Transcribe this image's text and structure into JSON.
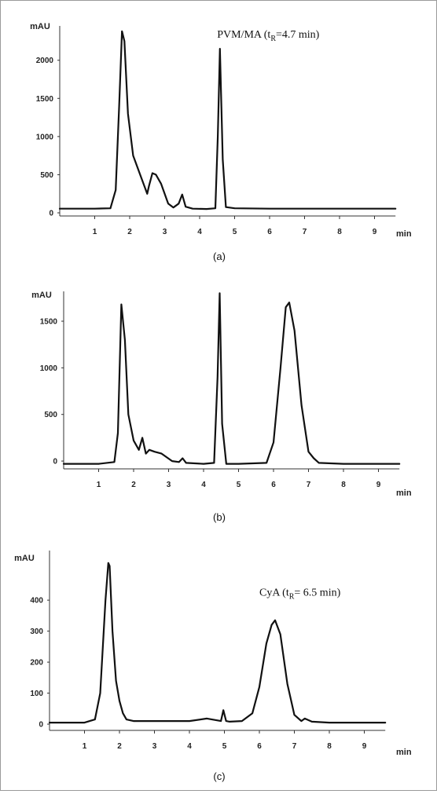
{
  "chart_data": [
    {
      "type": "line",
      "panel_label": "(a)",
      "ylabel": "mAU",
      "xlabel": "min",
      "xlim": [
        0,
        9.6
      ],
      "ylim": [
        0,
        2450
      ],
      "xticks": [
        1,
        2,
        3,
        4,
        5,
        6,
        7,
        8,
        9
      ],
      "yticks": [
        0,
        500,
        1000,
        1500,
        2000
      ],
      "annotations": [
        {
          "parts": [
            {
              "t": "PVM/MA (t"
            },
            {
              "t": "R",
              "sub": true
            },
            {
              "t": "=4.7 min)"
            }
          ],
          "x": 4.5,
          "y": 2400
        }
      ],
      "series": [
        {
          "x": [
            0.0,
            1.0,
            1.45,
            1.6,
            1.7,
            1.78,
            1.85,
            1.95,
            2.1,
            2.3,
            2.5,
            2.55,
            2.65,
            2.75,
            2.9,
            3.1,
            3.25,
            3.4,
            3.5,
            3.6,
            3.8,
            4.2,
            4.45,
            4.52,
            4.58,
            4.66,
            4.75,
            5.0,
            6.0,
            8.0,
            9.6
          ],
          "y": [
            55,
            55,
            60,
            300,
            1400,
            2380,
            2250,
            1300,
            750,
            500,
            250,
            350,
            520,
            500,
            380,
            120,
            70,
            120,
            240,
            80,
            55,
            50,
            60,
            1000,
            2150,
            700,
            75,
            60,
            55,
            55,
            55
          ]
        }
      ]
    },
    {
      "type": "line",
      "panel_label": "(b)",
      "ylabel": "mAU",
      "xlabel": "min",
      "xlim": [
        0,
        9.6
      ],
      "ylim": [
        -50,
        1820
      ],
      "xticks": [
        1,
        2,
        3,
        4,
        5,
        6,
        7,
        8,
        9
      ],
      "yticks": [
        0,
        500,
        1000,
        1500
      ],
      "annotations": [],
      "series": [
        {
          "x": [
            0.0,
            1.0,
            1.45,
            1.55,
            1.65,
            1.75,
            1.85,
            2.0,
            2.15,
            2.25,
            2.35,
            2.45,
            2.6,
            2.8,
            3.1,
            3.3,
            3.4,
            3.5,
            4.0,
            4.3,
            4.4,
            4.46,
            4.53,
            4.65,
            5.0,
            5.8,
            6.0,
            6.2,
            6.35,
            6.45,
            6.6,
            6.8,
            7.0,
            7.15,
            7.3,
            8.0,
            9.6
          ],
          "y": [
            -30,
            -30,
            -10,
            300,
            1680,
            1300,
            500,
            220,
            120,
            250,
            80,
            120,
            100,
            80,
            0,
            -10,
            30,
            -20,
            -30,
            -20,
            900,
            1800,
            400,
            -30,
            -30,
            -20,
            200,
            1000,
            1650,
            1700,
            1400,
            600,
            100,
            30,
            -20,
            -30,
            -30
          ]
        }
      ]
    },
    {
      "type": "line",
      "panel_label": "(c)",
      "ylabel": "mAU",
      "xlabel": "min",
      "xlim": [
        0,
        9.6
      ],
      "ylim": [
        -10,
        560
      ],
      "xticks": [
        1,
        2,
        3,
        4,
        5,
        6,
        7,
        8,
        9
      ],
      "yticks": [
        0,
        100,
        200,
        300,
        400
      ],
      "annotations": [
        {
          "parts": [
            {
              "t": "CyA (t"
            },
            {
              "t": "R",
              "sub": true
            },
            {
              "t": "= 6.5 min)"
            }
          ],
          "x": 6.0,
          "y": 440
        }
      ],
      "series": [
        {
          "x": [
            0.0,
            1.0,
            1.3,
            1.45,
            1.6,
            1.68,
            1.72,
            1.8,
            1.9,
            2.0,
            2.1,
            2.2,
            2.4,
            3.0,
            4.0,
            4.5,
            4.9,
            4.97,
            5.05,
            5.15,
            5.5,
            5.8,
            6.0,
            6.2,
            6.35,
            6.45,
            6.6,
            6.8,
            7.0,
            7.2,
            7.3,
            7.5,
            8.0,
            9.6
          ],
          "y": [
            5,
            5,
            15,
            100,
            400,
            520,
            510,
            300,
            140,
            75,
            35,
            15,
            10,
            10,
            10,
            18,
            10,
            45,
            10,
            8,
            10,
            35,
            120,
            260,
            320,
            335,
            290,
            130,
            30,
            10,
            18,
            8,
            5,
            5
          ]
        }
      ]
    }
  ]
}
